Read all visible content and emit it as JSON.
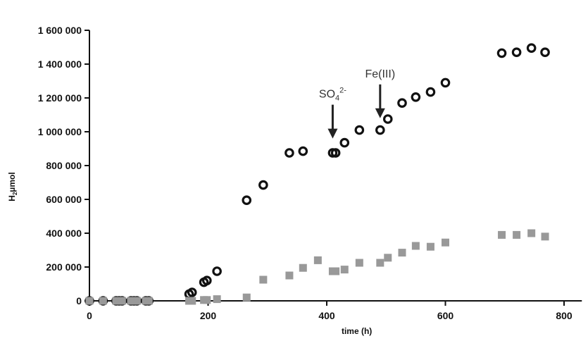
{
  "chart_data": {
    "type": "scatter",
    "xlabel": "time (h)",
    "ylabel_main": "H",
    "ylabel_sub": "2",
    "ylabel_rest": "µmol",
    "xlim": [
      0,
      830
    ],
    "ylim": [
      0,
      1600000
    ],
    "x_ticks": [
      0,
      200,
      400,
      600,
      800
    ],
    "y_ticks": [
      0,
      200000,
      400000,
      600000,
      800000,
      1000000,
      1200000,
      1400000,
      1600000
    ],
    "x_tick_labels": [
      "0",
      "200",
      "400",
      "600",
      "800"
    ],
    "y_tick_labels": [
      "0",
      "200 000",
      "400 000",
      "600 000",
      "800 000",
      "1 000 000",
      "1 200 000",
      "1 400 000",
      "1 600 000"
    ],
    "grid": false,
    "series": [
      {
        "marker": "open-circle",
        "color": "#111111",
        "x": [
          0,
          23,
          45,
          50,
          55,
          70,
          75,
          80,
          95,
          100,
          168,
          173,
          193,
          198,
          215,
          265,
          293,
          337,
          360,
          410,
          415,
          430,
          455,
          490,
          503,
          527,
          550,
          575,
          600,
          695,
          720,
          745,
          768
        ],
        "y": [
          0,
          0,
          0,
          0,
          0,
          0,
          0,
          0,
          0,
          0,
          40000,
          50000,
          110000,
          120000,
          175000,
          595000,
          685000,
          875000,
          885000,
          875000,
          875000,
          935000,
          1010000,
          1010000,
          1075000,
          1170000,
          1205000,
          1235000,
          1290000,
          1465000,
          1470000,
          1495000,
          1470000
        ]
      },
      {
        "marker": "filled-square",
        "color": "#999999",
        "x": [
          0,
          23,
          45,
          50,
          55,
          70,
          75,
          80,
          95,
          100,
          168,
          173,
          193,
          198,
          215,
          265,
          293,
          337,
          360,
          385,
          410,
          415,
          430,
          455,
          490,
          503,
          527,
          550,
          575,
          600,
          695,
          720,
          745,
          768
        ],
        "y": [
          0,
          0,
          0,
          0,
          0,
          0,
          0,
          0,
          0,
          0,
          0,
          0,
          5000,
          5000,
          10000,
          20000,
          125000,
          150000,
          195000,
          240000,
          175000,
          175000,
          185000,
          225000,
          225000,
          255000,
          285000,
          325000,
          320000,
          345000,
          390000,
          390000,
          400000,
          380000
        ]
      }
    ],
    "annotations": [
      {
        "label_main": "SO",
        "label_sub": "4",
        "label_sup": "2-",
        "x": 410,
        "arrow_from_y": 1160000,
        "arrow_to_y": 960000
      },
      {
        "label": "Fe(III)",
        "x": 490,
        "arrow_from_y": 1280000,
        "arrow_to_y": 1080000
      }
    ]
  }
}
